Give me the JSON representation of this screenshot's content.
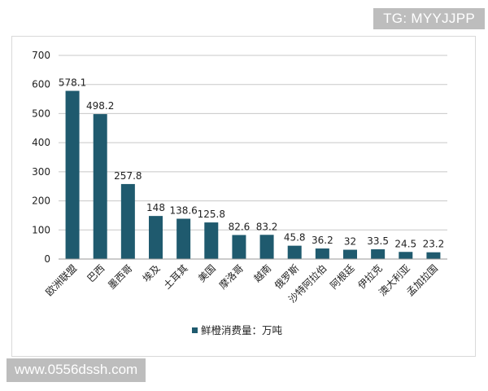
{
  "watermarks": {
    "top": "TG: MYYJJPP",
    "bottom": "www.0556dssh.com"
  },
  "colors": {
    "bar": "#1f5a6e",
    "grid": "#c8c8c8",
    "axis": "#9a9a9a"
  },
  "chart_data": {
    "type": "bar",
    "categories": [
      "欧洲联盟",
      "巴西",
      "墨西哥",
      "埃及",
      "土耳其",
      "美国",
      "摩洛哥",
      "越南",
      "俄罗斯",
      "沙特阿拉伯",
      "阿根廷",
      "伊拉克",
      "澳大利亚",
      "孟加拉国"
    ],
    "series": [
      {
        "name": "鲜橙消费量：万吨",
        "values": [
          578.1,
          498.2,
          257.8,
          148,
          138.6,
          125.8,
          82.6,
          83.2,
          45.8,
          36.2,
          32,
          33.5,
          24.5,
          23.2
        ]
      }
    ],
    "data_labels": [
      "578.1",
      "498.2",
      "257.8",
      "148",
      "138.6",
      "125.8",
      "82.6",
      "83.2",
      "45.8",
      "36.2",
      "32",
      "33.5",
      "24.5",
      "23.2"
    ],
    "y_ticks": [
      "0",
      "100",
      "200",
      "300",
      "400",
      "500",
      "600",
      "700"
    ],
    "ylim": [
      0,
      700
    ],
    "grid": true,
    "legend_position": "bottom"
  }
}
